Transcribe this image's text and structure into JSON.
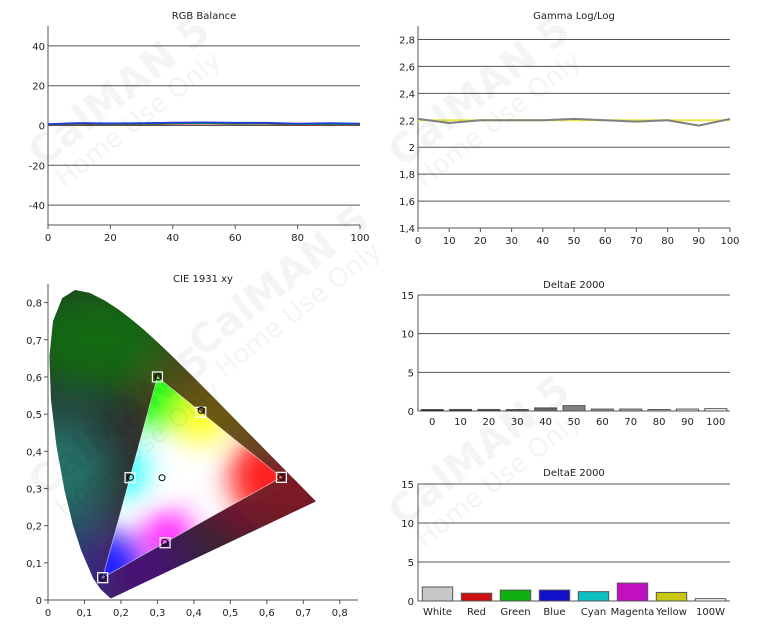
{
  "watermark": {
    "line1": "CalMAN 5",
    "line2": "Home Use Only"
  },
  "chart_data": [
    {
      "id": "rgb-balance",
      "type": "line",
      "title": "RGB Balance",
      "xlim": [
        0,
        100
      ],
      "ylim": [
        -50,
        50
      ],
      "x_ticks": [
        0,
        20,
        40,
        60,
        80,
        100
      ],
      "y_ticks": [
        -40,
        -20,
        0,
        20,
        40
      ],
      "x": [
        0,
        10,
        20,
        30,
        40,
        50,
        60,
        70,
        80,
        90,
        100
      ],
      "series": [
        {
          "color": "#d02020",
          "values": [
            0.4,
            0.8,
            0.7,
            0.6,
            0.9,
            1.0,
            0.8,
            0.9,
            0.5,
            0.6,
            0.5
          ]
        },
        {
          "color": "#20a020",
          "values": [
            0.5,
            1.0,
            0.8,
            0.8,
            1.1,
            1.2,
            1.0,
            1.1,
            0.7,
            0.8,
            0.7
          ]
        },
        {
          "color": "#1f3fd0",
          "values": [
            0.6,
            1.2,
            1.0,
            1.1,
            1.4,
            1.5,
            1.3,
            1.3,
            0.9,
            1.1,
            0.9
          ]
        }
      ]
    },
    {
      "id": "gamma-log-log",
      "type": "line",
      "title": "Gamma Log/Log",
      "xlim": [
        0,
        100
      ],
      "ylim": [
        1.4,
        2.9
      ],
      "x_ticks": [
        0,
        10,
        20,
        30,
        40,
        50,
        60,
        70,
        80,
        90,
        100
      ],
      "y_ticks": [
        1.4,
        1.6,
        1.8,
        2,
        2.2,
        2.4,
        2.6,
        2.8
      ],
      "y_tick_labels": [
        "1,4",
        "1,6",
        "1,8",
        "2",
        "2,2",
        "2,4",
        "2,6",
        "2,8"
      ],
      "x": [
        0,
        10,
        20,
        30,
        40,
        50,
        60,
        70,
        80,
        90,
        100
      ],
      "series": [
        {
          "color": "#e8e84a",
          "values": [
            2.2,
            2.2,
            2.2,
            2.2,
            2.2,
            2.2,
            2.2,
            2.2,
            2.2,
            2.2,
            2.2
          ]
        },
        {
          "color": "#808080",
          "values": [
            2.21,
            2.18,
            2.2,
            2.2,
            2.2,
            2.21,
            2.2,
            2.19,
            2.2,
            2.16,
            2.21
          ]
        }
      ]
    },
    {
      "id": "cie-1931-xy",
      "type": "scatter",
      "title": "CIE 1931 xy",
      "xlim": [
        0,
        0.85
      ],
      "ylim": [
        0,
        0.85
      ],
      "x_ticks": [
        0,
        0.1,
        0.2,
        0.3,
        0.4,
        0.5,
        0.6,
        0.7,
        0.8
      ],
      "y_ticks": [
        0,
        0.1,
        0.2,
        0.3,
        0.4,
        0.5,
        0.6,
        0.7,
        0.8
      ],
      "x_tick_labels": [
        "0",
        "0,1",
        "0,2",
        "0,3",
        "0,4",
        "0,5",
        "0,6",
        "0,7",
        "0,8"
      ],
      "y_tick_labels": [
        "0",
        "0,1",
        "0,2",
        "0,3",
        "0,4",
        "0,5",
        "0,6",
        "0,7",
        "0,8"
      ],
      "locus": [
        [
          0.1741,
          0.005
        ],
        [
          0.1733,
          0.0048
        ],
        [
          0.1726,
          0.0048
        ],
        [
          0.1714,
          0.0051
        ],
        [
          0.1689,
          0.0069
        ],
        [
          0.1644,
          0.0109
        ],
        [
          0.1566,
          0.0177
        ],
        [
          0.144,
          0.0297
        ],
        [
          0.1241,
          0.0578
        ],
        [
          0.0913,
          0.1327
        ],
        [
          0.0687,
          0.2007
        ],
        [
          0.0454,
          0.295
        ],
        [
          0.0235,
          0.4127
        ],
        [
          0.0082,
          0.5384
        ],
        [
          0.0039,
          0.6548
        ],
        [
          0.0139,
          0.7502
        ],
        [
          0.0389,
          0.812
        ],
        [
          0.0743,
          0.8338
        ],
        [
          0.1142,
          0.8262
        ],
        [
          0.1547,
          0.8059
        ],
        [
          0.1929,
          0.7816
        ],
        [
          0.2296,
          0.7543
        ],
        [
          0.2658,
          0.7243
        ],
        [
          0.3016,
          0.6923
        ],
        [
          0.3373,
          0.6589
        ],
        [
          0.3731,
          0.6245
        ],
        [
          0.4087,
          0.5896
        ],
        [
          0.4441,
          0.5547
        ],
        [
          0.4788,
          0.5202
        ],
        [
          0.5125,
          0.4866
        ],
        [
          0.5448,
          0.4544
        ],
        [
          0.5752,
          0.4242
        ],
        [
          0.6029,
          0.3965
        ],
        [
          0.627,
          0.3725
        ],
        [
          0.6482,
          0.3514
        ],
        [
          0.6658,
          0.334
        ],
        [
          0.6801,
          0.3197
        ],
        [
          0.6915,
          0.3083
        ],
        [
          0.7006,
          0.2993
        ],
        [
          0.7079,
          0.292
        ],
        [
          0.714,
          0.2859
        ],
        [
          0.719,
          0.2809
        ],
        [
          0.723,
          0.277
        ],
        [
          0.726,
          0.274
        ],
        [
          0.7347,
          0.2653
        ]
      ],
      "targets": [
        [
          0.64,
          0.33
        ],
        [
          0.3,
          0.6
        ],
        [
          0.15,
          0.06
        ],
        [
          0.225,
          0.329
        ],
        [
          0.321,
          0.154
        ],
        [
          0.419,
          0.505
        ],
        [
          0.3127,
          0.329
        ]
      ],
      "measured": [
        [
          0.64,
          0.33
        ],
        [
          0.302,
          0.6
        ],
        [
          0.15,
          0.06
        ],
        [
          0.226,
          0.33
        ],
        [
          0.32,
          0.155
        ],
        [
          0.42,
          0.51
        ],
        [
          0.3127,
          0.329
        ]
      ]
    },
    {
      "id": "deltae-grayscale",
      "type": "bar",
      "title": "DeltaE 2000",
      "ylim": [
        0,
        15
      ],
      "y_ticks": [
        0,
        5,
        10,
        15
      ],
      "categories": [
        "0",
        "10",
        "20",
        "30",
        "40",
        "50",
        "60",
        "70",
        "80",
        "90",
        "100"
      ],
      "values": [
        0.05,
        0.2,
        0.2,
        0.1,
        0.4,
        0.7,
        0.25,
        0.25,
        0.1,
        0.25,
        0.3
      ],
      "colors": [
        "#000000",
        "#1a1a1a",
        "#333333",
        "#4d4d4d",
        "#666666",
        "#808080",
        "#999999",
        "#b3b3b3",
        "#cccccc",
        "#e6e6e6",
        "#ffffff"
      ]
    },
    {
      "id": "deltae-colors",
      "type": "bar",
      "title": "DeltaE 2000",
      "ylim": [
        0,
        15
      ],
      "y_ticks": [
        0,
        5,
        10,
        15
      ],
      "categories": [
        "White",
        "Red",
        "Green",
        "Blue",
        "Cyan",
        "Magenta",
        "Yellow",
        "100W"
      ],
      "values": [
        1.8,
        1.0,
        1.4,
        1.4,
        1.2,
        2.3,
        1.1,
        0.3
      ],
      "colors": [
        "#c8c8c8",
        "#cc1010",
        "#10b010",
        "#1010c8",
        "#10c0c0",
        "#c010c0",
        "#c8c810",
        "#ffffff"
      ]
    }
  ]
}
